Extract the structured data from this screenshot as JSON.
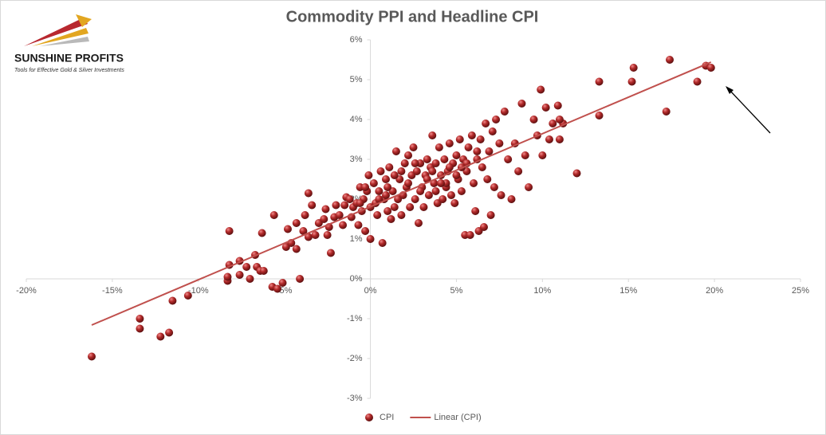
{
  "logo": {
    "name": "SUNSHINE PROFITS",
    "tagline": "Tools for Effective Gold & Silver Investments"
  },
  "chart_data": {
    "type": "scatter",
    "title": "Commodity PPI and Headline CPI",
    "xlim": [
      -20,
      25
    ],
    "xticks": [
      {
        "value": -20,
        "label": "-20%"
      },
      {
        "value": -15,
        "label": "-15%"
      },
      {
        "value": -10,
        "label": "-10%"
      },
      {
        "value": -5,
        "label": "-5%"
      },
      {
        "value": 0,
        "label": "0%"
      },
      {
        "value": 5,
        "label": "5%"
      },
      {
        "value": 10,
        "label": "10%"
      },
      {
        "value": 15,
        "label": "15%"
      },
      {
        "value": 20,
        "label": "20%"
      },
      {
        "value": 25,
        "label": "25%"
      }
    ],
    "ylim": [
      -3,
      6
    ],
    "yticks": [
      {
        "value": -3,
        "label": "-3%"
      },
      {
        "value": -2,
        "label": "-2%"
      },
      {
        "value": -1,
        "label": "-1%"
      },
      {
        "value": 0,
        "label": "0%"
      },
      {
        "value": 1,
        "label": "1%"
      },
      {
        "value": 2,
        "label": "2%"
      },
      {
        "value": 3,
        "label": "3%"
      },
      {
        "value": 4,
        "label": "4%"
      },
      {
        "value": 5,
        "label": "5%"
      },
      {
        "value": 6,
        "label": "6%"
      }
    ],
    "legend": "bottom",
    "series": [
      {
        "name": "CPI",
        "color": "#b22a2a",
        "x": [
          -16.2,
          -13.4,
          -13.4,
          -12.2,
          -11.7,
          -11.5,
          -10.6,
          -8.2,
          -8.2,
          -8.3,
          -8.3,
          -7.6,
          -7.6,
          -7.2,
          -7.0,
          -6.6,
          -6.7,
          -6.4,
          -6.3,
          -6.2,
          -5.7,
          -5.6,
          -5.4,
          -5.1,
          -4.9,
          -4.8,
          -4.6,
          -4.3,
          -4.3,
          -4.1,
          -3.9,
          -3.8,
          -3.6,
          -3.6,
          -3.4,
          -3.2,
          -3.0,
          -2.7,
          -2.6,
          -2.4,
          -2.5,
          -2.3,
          -2.1,
          -2.0,
          -1.8,
          -1.6,
          -1.5,
          -1.4,
          -1.1,
          -1.0,
          -0.8,
          -0.7,
          -0.6,
          -0.5,
          -0.4,
          -0.3,
          -0.2,
          -0.1,
          0.0,
          0.0,
          -0.3,
          0.2,
          0.3,
          0.4,
          0.5,
          0.6,
          0.7,
          0.8,
          0.9,
          1.0,
          1.1,
          1.2,
          1.3,
          1.4,
          1.5,
          1.6,
          1.7,
          1.8,
          1.9,
          2.0,
          2.1,
          2.2,
          2.3,
          2.4,
          2.5,
          2.6,
          2.7,
          2.8,
          2.9,
          3.0,
          3.1,
          3.2,
          3.3,
          3.4,
          3.5,
          3.6,
          3.7,
          3.8,
          3.9,
          4.0,
          4.1,
          4.2,
          4.3,
          4.4,
          4.5,
          4.6,
          4.7,
          4.8,
          4.9,
          5.0,
          5.1,
          5.2,
          5.3,
          5.4,
          5.5,
          5.6,
          5.7,
          5.8,
          5.9,
          6.0,
          6.1,
          6.2,
          6.3,
          6.4,
          6.5,
          6.6,
          6.7,
          6.8,
          6.9,
          7.0,
          7.1,
          7.2,
          7.3,
          7.5,
          7.6,
          7.8,
          8.0,
          8.2,
          8.4,
          8.6,
          8.8,
          9.0,
          9.2,
          9.5,
          9.7,
          9.9,
          10.0,
          10.2,
          10.4,
          10.6,
          10.9,
          11.0,
          11.2,
          11.0,
          12.0,
          13.3,
          13.3,
          15.2,
          15.3,
          17.2,
          17.4,
          19.0,
          19.5,
          19.8,
          0.5,
          1.0,
          1.8,
          2.6,
          3.3,
          3.8,
          4.4,
          5.0,
          5.6,
          6.2,
          -1.2,
          -0.6,
          0.9,
          2.2,
          3.6,
          4.6,
          1.4,
          2.9,
          4.1,
          5.3
        ],
        "values": [
          -1.95,
          -1.0,
          -1.25,
          -1.45,
          -1.35,
          -0.55,
          -0.42,
          1.2,
          0.35,
          -0.05,
          0.05,
          0.1,
          0.45,
          0.3,
          0.0,
          0.3,
          0.6,
          0.2,
          1.15,
          0.2,
          -0.2,
          1.6,
          -0.25,
          -0.1,
          0.8,
          1.25,
          0.9,
          0.75,
          1.4,
          0.0,
          1.2,
          1.6,
          1.05,
          2.15,
          1.85,
          1.1,
          1.4,
          1.5,
          1.75,
          1.3,
          1.1,
          0.65,
          1.55,
          1.85,
          1.6,
          1.35,
          1.85,
          2.05,
          1.55,
          1.8,
          1.9,
          1.35,
          2.3,
          1.7,
          2.0,
          1.2,
          2.2,
          2.6,
          1.8,
          1.0,
          2.3,
          2.4,
          1.9,
          1.6,
          2.2,
          2.7,
          0.9,
          2.0,
          2.5,
          1.7,
          2.8,
          1.5,
          2.2,
          1.8,
          3.2,
          2.0,
          2.5,
          1.6,
          2.1,
          2.9,
          2.3,
          3.1,
          1.8,
          2.6,
          3.3,
          2.0,
          2.7,
          1.4,
          2.9,
          2.3,
          1.8,
          2.6,
          3.0,
          2.1,
          2.8,
          3.6,
          2.4,
          2.9,
          1.9,
          3.3,
          2.6,
          2.0,
          3.0,
          2.3,
          2.7,
          3.4,
          2.1,
          2.9,
          1.9,
          3.1,
          2.5,
          3.5,
          2.2,
          3.0,
          1.1,
          2.7,
          3.3,
          1.1,
          3.6,
          2.4,
          1.7,
          3.0,
          1.2,
          3.5,
          2.8,
          1.3,
          3.9,
          2.5,
          3.2,
          1.6,
          3.7,
          2.3,
          4.0,
          3.4,
          2.1,
          4.2,
          3.0,
          2.0,
          3.4,
          2.7,
          4.4,
          3.1,
          2.3,
          4.0,
          3.6,
          4.75,
          3.1,
          4.3,
          3.5,
          3.9,
          4.35,
          3.5,
          3.9,
          4.0,
          2.65,
          4.95,
          4.1,
          4.95,
          5.3,
          4.2,
          5.5,
          4.95,
          5.35,
          5.3,
          2.0,
          2.3,
          2.7,
          2.9,
          2.5,
          2.2,
          2.4,
          2.6,
          2.9,
          3.2,
          2.0,
          1.9,
          2.1,
          2.4,
          2.7,
          2.8,
          2.6,
          2.2,
          2.4,
          2.8
        ]
      },
      {
        "name": "Linear (CPI)",
        "color": "#c0504d",
        "line": true,
        "x": [
          -16.2,
          19.8
        ],
        "values": [
          -1.16,
          5.44
        ]
      }
    ]
  }
}
